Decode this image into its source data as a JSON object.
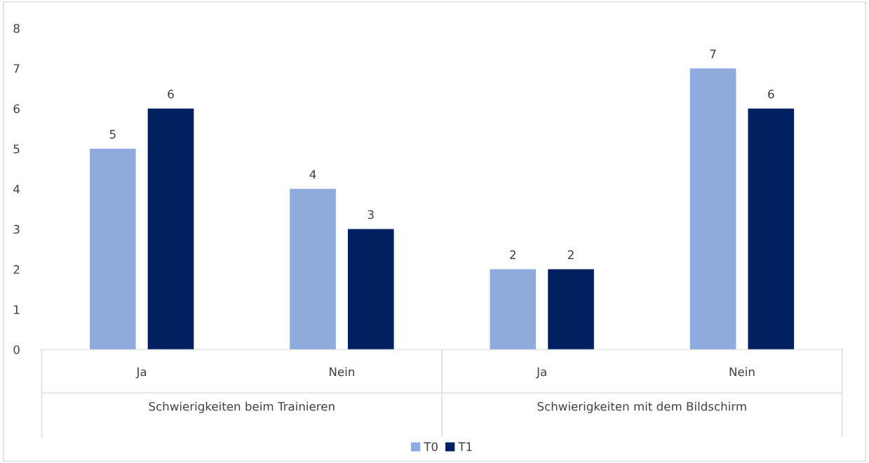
{
  "chart_data": {
    "type": "bar",
    "categories": [
      "Ja",
      "Nein",
      "Ja",
      "Nein"
    ],
    "series": [
      {
        "name": "T0",
        "color": "#8faadc",
        "values": [
          5,
          4,
          2,
          7
        ]
      },
      {
        "name": "T1",
        "color": "#002060",
        "values": [
          6,
          3,
          2,
          6
        ]
      }
    ],
    "annotations": [
      "Schwierigkeiten beim Trainieren",
      "Schwierigkeiten mit dem Bildschirm"
    ],
    "ylim": [
      0,
      8
    ],
    "yticks": [
      0,
      1,
      2,
      3,
      4,
      5,
      6,
      7,
      8
    ],
    "data_labels": true,
    "grid": false,
    "legend": "bottom"
  }
}
